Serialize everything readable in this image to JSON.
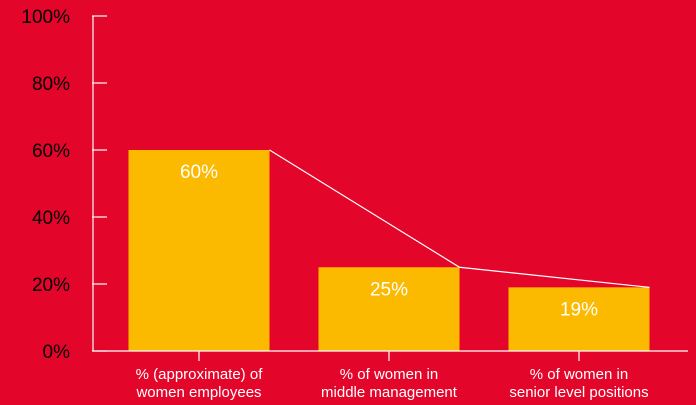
{
  "colors": {
    "background": "#E4052A",
    "bar": "#FBBA00",
    "axis": "#FFFFFF",
    "label_text": "#FFFFFF",
    "axis_text": "#000000"
  },
  "chart_data": {
    "type": "bar",
    "categories": [
      [
        "% (approximate) of",
        "women employees"
      ],
      [
        "% of women in",
        "middle management"
      ],
      [
        "% of women in",
        "senior level positions"
      ]
    ],
    "values": [
      60,
      25,
      19
    ],
    "data_labels": [
      "60%",
      "25%",
      "19%"
    ],
    "ylim": [
      0,
      100
    ],
    "yticks": [
      0,
      20,
      40,
      60,
      80,
      100
    ],
    "ytick_labels": [
      "0%",
      "20%",
      "40%",
      "60%",
      "80%",
      "100%"
    ],
    "connector_line": true,
    "grid": false,
    "title": "",
    "xlabel": "",
    "ylabel": ""
  }
}
